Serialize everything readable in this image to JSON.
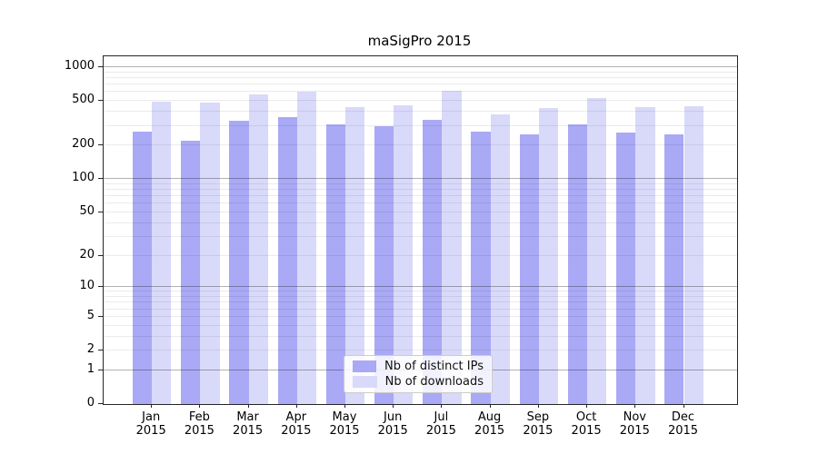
{
  "chart_data": {
    "type": "bar",
    "title": "maSigPro 2015",
    "categories": [
      "Jan 2015",
      "Feb 2015",
      "Mar 2015",
      "Apr 2015",
      "May 2015",
      "Jun 2015",
      "Jul 2015",
      "Aug 2015",
      "Sep 2015",
      "Oct 2015",
      "Nov 2015",
      "Dec 2015"
    ],
    "series": [
      {
        "name": "Nb of distinct IPs",
        "color": "#a9a9f5",
        "values": [
          265,
          220,
          330,
          360,
          310,
          295,
          340,
          265,
          250,
          310,
          260,
          250
        ]
      },
      {
        "name": "Nb of downloads",
        "color": "#d9d9fa",
        "values": [
          495,
          485,
          575,
          600,
          440,
          455,
          615,
          380,
          435,
          535,
          440,
          450
        ]
      }
    ],
    "xlabel": "",
    "ylabel": "",
    "y_axis": {
      "scale": "log(1+x)",
      "ticks": [
        0,
        1,
        2,
        5,
        10,
        20,
        50,
        100,
        200,
        500,
        1000
      ],
      "range_top": 1200
    },
    "grid": "on",
    "legend_position": "bottom-center"
  }
}
